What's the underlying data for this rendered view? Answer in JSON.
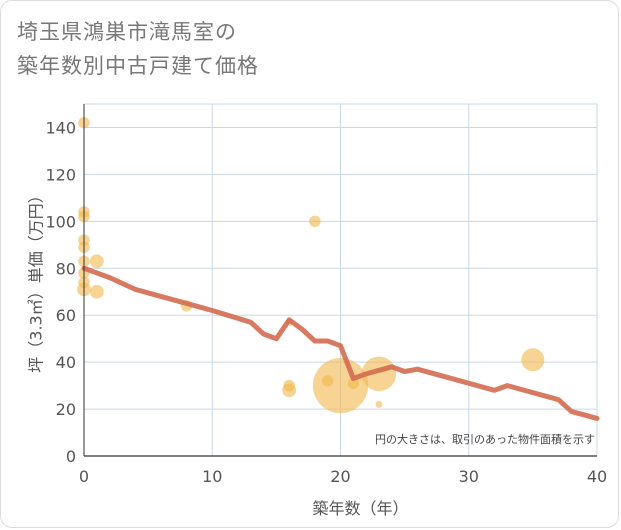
{
  "title_line1": "埼玉県鴻巣市滝馬室の",
  "title_line2": "築年数別中古戸建て価格",
  "chart_data": {
    "type": "scatter",
    "title": "埼玉県鴻巣市滝馬室の築年数別中古戸建て価格",
    "xlabel": "築年数（年）",
    "ylabel": "坪（3.3㎡）単価（万円）",
    "xlim": [
      0,
      40
    ],
    "ylim": [
      0,
      150
    ],
    "xticks": [
      0,
      10,
      20,
      30,
      40
    ],
    "yticks": [
      0,
      20,
      40,
      60,
      80,
      100,
      120,
      140
    ],
    "grid": true,
    "note": "円の大きさは、取引のあった物件面積を示す",
    "colors": {
      "bubble": "#f2b84b",
      "line": "#d36b50",
      "grid": "#c9d8e6"
    },
    "bubbles": [
      {
        "x": 0,
        "y": 142,
        "size": 5
      },
      {
        "x": 0,
        "y": 104,
        "size": 5
      },
      {
        "x": 0,
        "y": 102,
        "size": 5
      },
      {
        "x": 0,
        "y": 92,
        "size": 5
      },
      {
        "x": 0,
        "y": 89,
        "size": 5
      },
      {
        "x": 0,
        "y": 83,
        "size": 5
      },
      {
        "x": 0,
        "y": 78,
        "size": 5
      },
      {
        "x": 0,
        "y": 74,
        "size": 5
      },
      {
        "x": 0,
        "y": 71,
        "size": 6
      },
      {
        "x": 1,
        "y": 83,
        "size": 6
      },
      {
        "x": 1,
        "y": 70,
        "size": 6
      },
      {
        "x": 8,
        "y": 64,
        "size": 5
      },
      {
        "x": 16,
        "y": 57,
        "size": 3
      },
      {
        "x": 16,
        "y": 30,
        "size": 5
      },
      {
        "x": 16,
        "y": 28,
        "size": 6
      },
      {
        "x": 18,
        "y": 100,
        "size": 5
      },
      {
        "x": 19,
        "y": 32,
        "size": 5
      },
      {
        "x": 20,
        "y": 30,
        "size": 24
      },
      {
        "x": 21,
        "y": 31,
        "size": 5
      },
      {
        "x": 23,
        "y": 35,
        "size": 15
      },
      {
        "x": 23,
        "y": 22,
        "size": 3
      },
      {
        "x": 35,
        "y": 41,
        "size": 10
      }
    ],
    "line": {
      "x": [
        0,
        1,
        2,
        4,
        6,
        8,
        10,
        13,
        14,
        15,
        16,
        17,
        18,
        19,
        20,
        21,
        22,
        24,
        25,
        26,
        28,
        30,
        32,
        33,
        35,
        37,
        38,
        40
      ],
      "y": [
        80,
        78,
        76,
        71,
        68,
        65,
        62,
        57,
        52,
        50,
        58,
        54,
        49,
        49,
        47,
        33,
        35,
        38,
        36,
        37,
        34,
        31,
        28,
        30,
        27,
        24,
        19,
        16
      ]
    }
  }
}
